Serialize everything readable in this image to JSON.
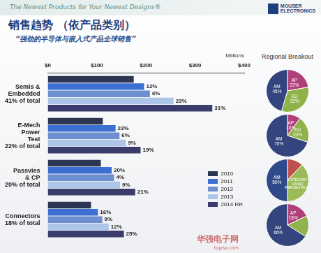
{
  "page": {
    "header": "The Newest Products for Your Newest Designs®",
    "logo": [
      "MOUSER",
      "ELECTRONICS"
    ],
    "watermark": [
      "华强电子网",
      "hqew.com"
    ]
  },
  "chart_data": [
    {
      "type": "bar",
      "orientation": "horizontal",
      "title": "销售趋势 （依产品类别）",
      "subtitle": "“强劲的半导体与嵌入式产品全球销售”",
      "x_label": "Millions",
      "categories": [
        "Semis & Embedded",
        "E-Mech Power Test",
        "Passvies & CP",
        "Connectors"
      ],
      "category_notes": [
        "41% of total",
        "22% of total",
        "20% of total",
        "18% of total"
      ],
      "series": [
        {
          "name": "2010",
          "color": "#2c3552",
          "values": [
            175,
            112,
            108,
            88
          ]
        },
        {
          "name": "2011",
          "color": "#3c6fd2",
          "values": [
            196,
            138,
            130,
            102
          ],
          "annotations": [
            "12%",
            "23%",
            "20%",
            "16%"
          ]
        },
        {
          "name": "2012",
          "color": "#6d8fd0",
          "values": [
            208,
            146,
            135,
            111
          ],
          "annotations": [
            "6%",
            "6%",
            "4%",
            "9%"
          ]
        },
        {
          "name": "2013",
          "color": "#aec5ea",
          "values": [
            256,
            159,
            147,
            124
          ],
          "annotations": [
            "23%",
            "9%",
            "9%",
            "12%"
          ]
        },
        {
          "name": "2014 RR",
          "color": "#3a3d6c",
          "values": [
            335,
            189,
            178,
            155
          ],
          "annotations": [
            "31%",
            "19%",
            "21%",
            "25%"
          ]
        }
      ],
      "xlim": [
        0,
        400
      ],
      "xticks": [
        {
          "value": 0,
          "label": "$0"
        },
        {
          "value": 100,
          "label": "$100"
        },
        {
          "value": 200,
          "label": "$200"
        },
        {
          "value": 300,
          "label": "$300"
        },
        {
          "value": 400,
          "label": "$400"
        }
      ],
      "grid": false,
      "legend": "bottom right"
    },
    {
      "type": "pie",
      "title": "Regional Breakout",
      "categories": [
        "AP",
        "EU",
        "AM"
      ],
      "values": [
        22,
        32,
        45
      ],
      "value_labels": [
        "22%",
        "32%",
        "45%"
      ],
      "colors": [
        "#b0407a",
        "#8fb34a",
        "#33447e"
      ],
      "data_labels": true
    },
    {
      "type": "pie",
      "categories": [
        "AP",
        "EU",
        "AM"
      ],
      "values": [
        10,
        20,
        70
      ],
      "value_labels": [
        "10%",
        "20%",
        "70%"
      ],
      "colors": [
        "#b0407a",
        "#8fb34a",
        "#33447e"
      ],
      "data_labels": true
    },
    {
      "type": "pie",
      "categories": [
        null,
        "[CATEGORY NAME] [PERCENTAGE]",
        "AM"
      ],
      "values": [
        12,
        38,
        50
      ],
      "value_labels": [
        null,
        null,
        "50%"
      ],
      "colors": [
        "#c0504d",
        "#9bbb59",
        "#2f4a8a"
      ],
      "data_labels": true
    },
    {
      "type": "pie",
      "categories": [
        "AP",
        null,
        "AM"
      ],
      "values": [
        18,
        16,
        66
      ],
      "value_labels": [
        "18%",
        null,
        "66%"
      ],
      "colors": [
        "#b0407a",
        "#8fb34a",
        "#33447e"
      ],
      "data_labels": true
    }
  ]
}
